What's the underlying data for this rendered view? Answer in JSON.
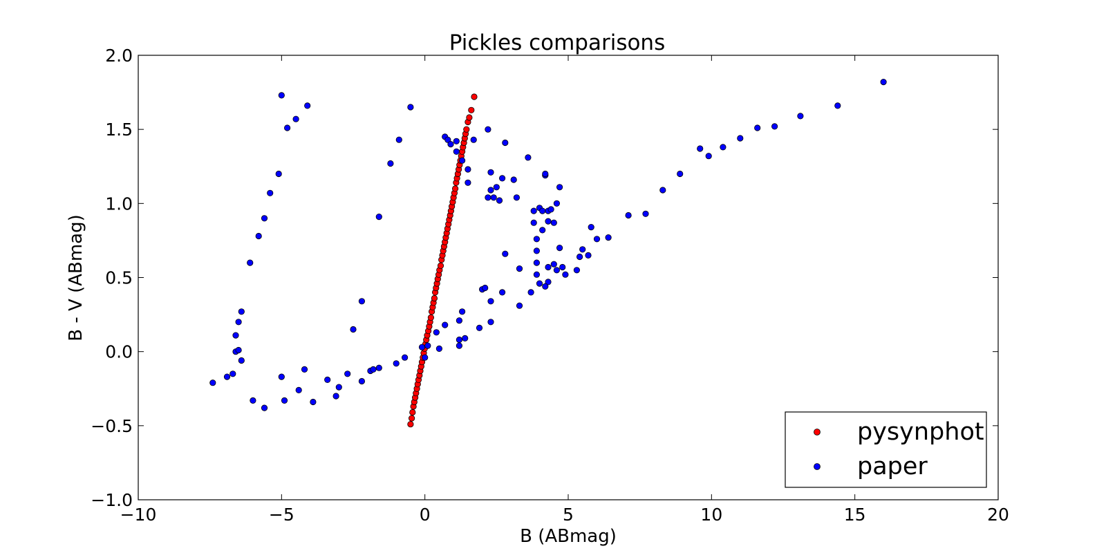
{
  "chart_data": {
    "type": "scatter",
    "title": "Pickles comparisons",
    "xlabel": "B (ABmag)",
    "ylabel": "B - V (ABmag)",
    "xlim": [
      -10,
      20
    ],
    "ylim": [
      -1.0,
      2.0
    ],
    "xticks": [
      -10,
      -5,
      0,
      5,
      10,
      15,
      20
    ],
    "yticks": [
      -1.0,
      -0.5,
      0.0,
      0.5,
      1.0,
      1.5,
      2.0
    ],
    "xtick_labels": [
      "−10",
      "−5",
      "0",
      "5",
      "10",
      "15",
      "20"
    ],
    "ytick_labels": [
      "−1.0",
      "−0.5",
      "0.0",
      "0.5",
      "1.0",
      "1.5",
      "2.0"
    ],
    "grid": false,
    "legend_position": "bottom-right",
    "series": [
      {
        "name": "pysynphot",
        "color": "#ff0000",
        "points": [
          [
            -0.5,
            -0.49
          ],
          [
            -0.46,
            -0.45
          ],
          [
            -0.43,
            -0.41
          ],
          [
            -0.4,
            -0.37
          ],
          [
            -0.37,
            -0.34
          ],
          [
            -0.34,
            -0.31
          ],
          [
            -0.31,
            -0.28
          ],
          [
            -0.28,
            -0.25
          ],
          [
            -0.25,
            -0.22
          ],
          [
            -0.22,
            -0.19
          ],
          [
            -0.19,
            -0.16
          ],
          [
            -0.16,
            -0.13
          ],
          [
            -0.13,
            -0.1
          ],
          [
            -0.1,
            -0.07
          ],
          [
            -0.07,
            -0.04
          ],
          [
            -0.04,
            -0.01
          ],
          [
            -0.01,
            0.02
          ],
          [
            0.02,
            0.05
          ],
          [
            0.05,
            0.08
          ],
          [
            0.08,
            0.11
          ],
          [
            0.12,
            0.14
          ],
          [
            0.15,
            0.17
          ],
          [
            0.18,
            0.2
          ],
          [
            0.21,
            0.23
          ],
          [
            0.24,
            0.27
          ],
          [
            0.27,
            0.3
          ],
          [
            0.3,
            0.33
          ],
          [
            0.33,
            0.36
          ],
          [
            0.36,
            0.4
          ],
          [
            0.39,
            0.43
          ],
          [
            0.42,
            0.46
          ],
          [
            0.45,
            0.49
          ],
          [
            0.48,
            0.52
          ],
          [
            0.51,
            0.55
          ],
          [
            0.55,
            0.58
          ],
          [
            0.58,
            0.62
          ],
          [
            0.61,
            0.65
          ],
          [
            0.64,
            0.68
          ],
          [
            0.67,
            0.71
          ],
          [
            0.7,
            0.74
          ],
          [
            0.73,
            0.77
          ],
          [
            0.76,
            0.8
          ],
          [
            0.79,
            0.83
          ],
          [
            0.82,
            0.86
          ],
          [
            0.85,
            0.89
          ],
          [
            0.88,
            0.92
          ],
          [
            0.91,
            0.95
          ],
          [
            0.94,
            0.98
          ],
          [
            0.97,
            1.01
          ],
          [
            1.0,
            1.04
          ],
          [
            1.03,
            1.07
          ],
          [
            1.06,
            1.1
          ],
          [
            1.09,
            1.14
          ],
          [
            1.12,
            1.17
          ],
          [
            1.15,
            1.2
          ],
          [
            1.18,
            1.23
          ],
          [
            1.21,
            1.26
          ],
          [
            1.24,
            1.29
          ],
          [
            1.27,
            1.32
          ],
          [
            1.3,
            1.35
          ],
          [
            1.33,
            1.38
          ],
          [
            1.36,
            1.41
          ],
          [
            1.39,
            1.44
          ],
          [
            1.42,
            1.47
          ],
          [
            1.45,
            1.5
          ],
          [
            1.5,
            1.55
          ],
          [
            1.55,
            1.58
          ],
          [
            1.62,
            1.63
          ],
          [
            1.72,
            1.72
          ]
        ]
      },
      {
        "name": "paper",
        "color": "#0000ff",
        "points": [
          [
            -7.4,
            -0.21
          ],
          [
            -6.9,
            -0.17
          ],
          [
            -6.7,
            -0.15
          ],
          [
            -6.6,
            0.0
          ],
          [
            -6.5,
            0.01
          ],
          [
            -6.4,
            -0.06
          ],
          [
            -6.6,
            0.11
          ],
          [
            -6.5,
            0.2
          ],
          [
            -6.4,
            0.27
          ],
          [
            -6.1,
            0.6
          ],
          [
            -5.8,
            0.78
          ],
          [
            -5.6,
            0.9
          ],
          [
            -5.4,
            1.07
          ],
          [
            -5.1,
            1.2
          ],
          [
            -5.0,
            1.73
          ],
          [
            -4.8,
            1.51
          ],
          [
            -4.5,
            1.57
          ],
          [
            -4.1,
            1.66
          ],
          [
            -6.0,
            -0.33
          ],
          [
            -5.6,
            -0.38
          ],
          [
            -4.9,
            -0.33
          ],
          [
            -4.4,
            -0.26
          ],
          [
            -3.9,
            -0.34
          ],
          [
            -5.0,
            -0.17
          ],
          [
            -4.2,
            -0.12
          ],
          [
            -3.4,
            -0.19
          ],
          [
            -3.1,
            -0.3
          ],
          [
            -3.0,
            -0.24
          ],
          [
            -2.7,
            -0.15
          ],
          [
            -2.2,
            -0.2
          ],
          [
            -1.9,
            -0.13
          ],
          [
            -1.8,
            -0.12
          ],
          [
            -1.6,
            -0.11
          ],
          [
            -1.0,
            -0.08
          ],
          [
            -0.7,
            -0.04
          ],
          [
            -2.2,
            0.34
          ],
          [
            -2.5,
            0.15
          ],
          [
            -1.6,
            0.91
          ],
          [
            -1.2,
            1.27
          ],
          [
            -0.9,
            1.43
          ],
          [
            -0.5,
            1.65
          ],
          [
            -0.1,
            0.03
          ],
          [
            0.1,
            0.04
          ],
          [
            0.0,
            -0.04
          ],
          [
            0.4,
            0.13
          ],
          [
            0.5,
            0.02
          ],
          [
            0.7,
            0.18
          ],
          [
            1.2,
            0.04
          ],
          [
            1.2,
            0.08
          ],
          [
            1.4,
            0.09
          ],
          [
            1.2,
            0.21
          ],
          [
            1.3,
            0.27
          ],
          [
            1.9,
            0.16
          ],
          [
            2.3,
            0.2
          ],
          [
            2.0,
            0.42
          ],
          [
            2.1,
            0.43
          ],
          [
            2.3,
            0.34
          ],
          [
            2.7,
            0.4
          ],
          [
            2.8,
            0.66
          ],
          [
            3.3,
            0.31
          ],
          [
            3.3,
            0.56
          ],
          [
            3.7,
            0.4
          ],
          [
            3.9,
            0.52
          ],
          [
            3.9,
            0.6
          ],
          [
            4.0,
            0.46
          ],
          [
            3.9,
            0.68
          ],
          [
            3.9,
            0.76
          ],
          [
            3.8,
            0.87
          ],
          [
            3.8,
            0.95
          ],
          [
            4.1,
            0.82
          ],
          [
            4.0,
            0.97
          ],
          [
            4.1,
            0.95
          ],
          [
            4.3,
            0.88
          ],
          [
            4.3,
            0.95
          ],
          [
            4.4,
            0.96
          ],
          [
            4.5,
            0.87
          ],
          [
            4.6,
            1.0
          ],
          [
            4.7,
            1.11
          ],
          [
            4.2,
            1.19
          ],
          [
            4.2,
            1.2
          ],
          [
            4.3,
            0.57
          ],
          [
            4.5,
            0.59
          ],
          [
            4.6,
            0.55
          ],
          [
            4.8,
            0.57
          ],
          [
            4.9,
            0.52
          ],
          [
            4.3,
            0.47
          ],
          [
            4.2,
            0.44
          ],
          [
            4.7,
            0.7
          ],
          [
            5.3,
            0.55
          ],
          [
            5.4,
            0.64
          ],
          [
            5.5,
            0.69
          ],
          [
            5.7,
            0.65
          ],
          [
            5.8,
            0.84
          ],
          [
            6.0,
            0.76
          ],
          [
            6.4,
            0.77
          ],
          [
            7.1,
            0.92
          ],
          [
            7.7,
            0.93
          ],
          [
            8.3,
            1.09
          ],
          [
            8.9,
            1.2
          ],
          [
            9.6,
            1.37
          ],
          [
            9.9,
            1.32
          ],
          [
            10.4,
            1.38
          ],
          [
            11.0,
            1.44
          ],
          [
            11.6,
            1.51
          ],
          [
            12.2,
            1.52
          ],
          [
            13.1,
            1.59
          ],
          [
            14.4,
            1.66
          ],
          [
            16.0,
            1.82
          ],
          [
            0.7,
            1.45
          ],
          [
            0.8,
            1.43
          ],
          [
            0.9,
            1.4
          ],
          [
            1.1,
            1.42
          ],
          [
            1.1,
            1.35
          ],
          [
            1.3,
            1.29
          ],
          [
            1.5,
            1.23
          ],
          [
            1.5,
            1.14
          ],
          [
            1.7,
            1.43
          ],
          [
            2.2,
            1.5
          ],
          [
            2.3,
            1.21
          ],
          [
            2.3,
            1.09
          ],
          [
            2.4,
            1.04
          ],
          [
            2.5,
            1.11
          ],
          [
            2.6,
            1.02
          ],
          [
            2.7,
            1.17
          ],
          [
            2.8,
            1.41
          ],
          [
            3.1,
            1.16
          ],
          [
            3.2,
            1.04
          ],
          [
            3.6,
            1.31
          ],
          [
            2.2,
            1.04
          ]
        ]
      }
    ]
  }
}
